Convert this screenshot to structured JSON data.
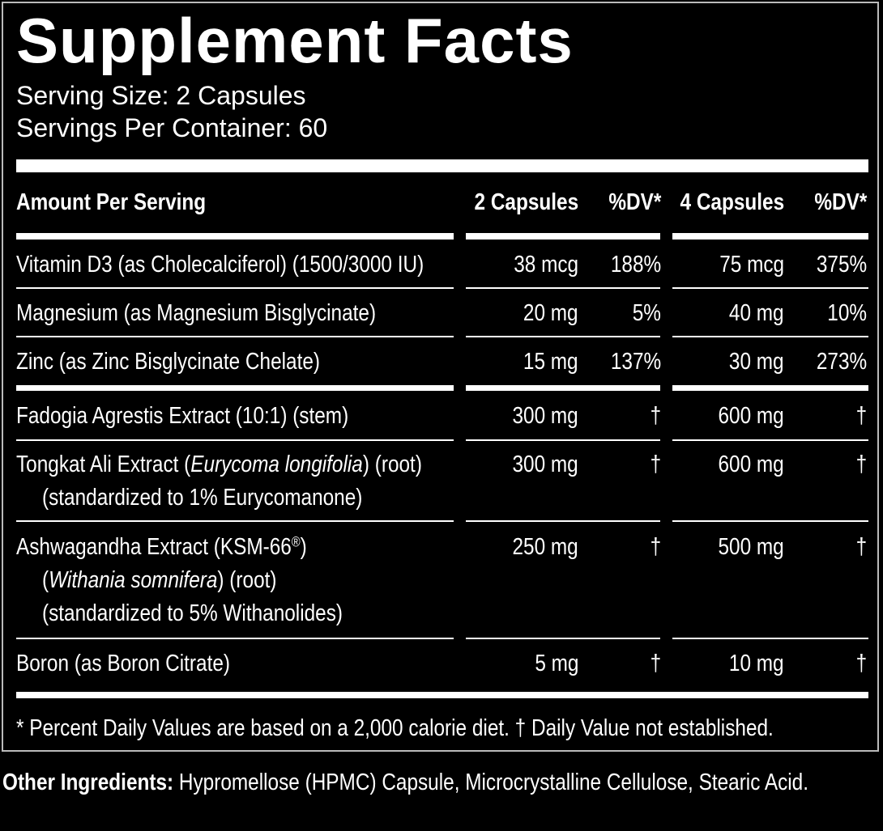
{
  "title": "Supplement Facts",
  "serving_size": "Serving Size: 2 Capsules",
  "servings_per_container": "Servings Per Container: 60",
  "table": {
    "header": [
      "Amount Per Serving",
      "2 Capsules",
      "%DV*",
      "4 Capsules",
      "%DV*"
    ],
    "rows": [
      {
        "name": [
          [
            "Vitamin D3 (as Cholecalciferol) (1500/3000 IU)"
          ]
        ],
        "cells": [
          "38 mcg",
          "188%",
          "75 mcg",
          "375%"
        ]
      },
      {
        "name": [
          [
            "Magnesium (as Magnesium Bisglycinate)"
          ]
        ],
        "cells": [
          "20 mg",
          "5%",
          "40 mg",
          "10%"
        ]
      },
      {
        "name": [
          [
            "Zinc (as Zinc Bisglycinate Chelate)"
          ]
        ],
        "cells": [
          "15 mg",
          "137%",
          "30 mg",
          "273%"
        ]
      },
      {
        "name": [
          [
            "Fadogia Agrestis Extract (10:1) (stem)"
          ]
        ],
        "cells": [
          "300 mg",
          "†",
          "600 mg",
          "†"
        ]
      },
      {
        "name": [
          [
            "Tongkat Ali Extract (",
            {
              "text": "Eurycoma longifolia",
              "style": "italic"
            },
            ") (root)"
          ],
          [
            "(standardized to 1% Eurycomanone)"
          ]
        ],
        "cells": [
          "300 mg",
          "†",
          "600 mg",
          "†"
        ]
      },
      {
        "name": [
          [
            "Ashwagandha Extract (KSM-66",
            {
              "text": "®",
              "style": "sup"
            },
            ")"
          ],
          [
            "(",
            {
              "text": "Withania somnifera",
              "style": "italic"
            },
            ") (root)"
          ],
          [
            "(standardized to 5% Withanolides)"
          ]
        ],
        "cells": [
          "250 mg",
          "†",
          "500 mg",
          "†"
        ]
      },
      {
        "name": [
          [
            "Boron (as Boron Citrate)"
          ]
        ],
        "cells": [
          "5 mg",
          "†",
          "10 mg",
          "†"
        ]
      }
    ]
  },
  "footnote": "* Percent Daily Values are based on a 2,000 calorie diet. † Daily Value not established.",
  "other_ingredients": {
    "label": "Other Ingredients:",
    "text": "Hypromellose (HPMC) Capsule, Microcrystalline Cellulose, Stearic Acid."
  }
}
